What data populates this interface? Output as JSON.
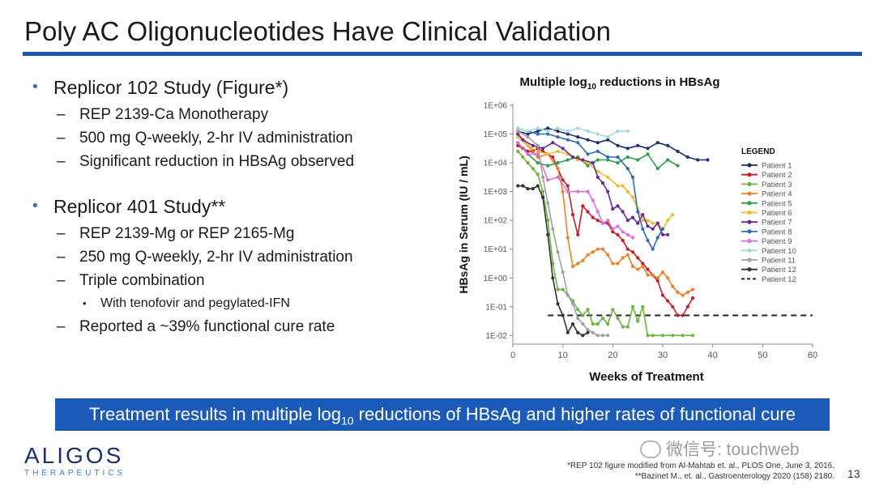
{
  "slide": {
    "title": "Poly AC Oligonucleotides Have Clinical Validation",
    "page_number": "13"
  },
  "bullets": {
    "study1": {
      "heading": "Replicor 102 Study (Figure*)",
      "items": [
        "REP 2139-Ca Monotherapy",
        "500 mg Q-weekly, 2-hr IV administration",
        "Significant reduction in HBsAg observed"
      ]
    },
    "study2": {
      "heading": "Replicor 401 Study**",
      "item1": "REP 2139-Mg or REP 2165-Mg",
      "item2": "250 mg Q-weekly, 2-hr IV administration",
      "item3": "Triple combination",
      "subitem": "With tenofovir and pegylated-IFN",
      "item4": "Reported a ~39% functional cure rate"
    }
  },
  "banner": {
    "pre": "Treatment results in multiple log",
    "sub": "10",
    "post": " reductions of HBsAg and higher rates of functional cure"
  },
  "footer": {
    "logo_main": "ALIGOS",
    "logo_sub": "THERAPEUTICS",
    "wechat": "微信号: touchweb",
    "ref1": "*REP 102 figure modified from Al-Mahtab et. al., PLOS One, June 3, 2016.",
    "ref2": "**Bazinet M., et. al., Gastroenterology 2020 (158) 2180."
  },
  "chart_data": {
    "type": "line",
    "title_pre": "Multiple log",
    "title_sub": "10",
    "title_post": " reductions in HBsAg",
    "xlabel": "Weeks of Treatment",
    "ylabel": "HBsAg in Serum (IU / mL)",
    "x_ticks": [
      0,
      10,
      20,
      30,
      40,
      50,
      60
    ],
    "y_ticks": [
      "1E+06",
      "1E+05",
      "1E+04",
      "1E+03",
      "1E+02",
      "1E+01",
      "1E+00",
      "1E-01",
      "1E-02"
    ],
    "xlim": [
      0,
      60
    ],
    "ylim_log10": [
      -2.3,
      6
    ],
    "legend_title": "LEGEND",
    "threshold": {
      "label": "Patient 12",
      "value_log10": -1.3,
      "color": "#222222"
    },
    "series": [
      {
        "name": "Patient 1",
        "color": "#1c2f6b",
        "points": [
          [
            1,
            5.1
          ],
          [
            3,
            5.0
          ],
          [
            5,
            5.1
          ],
          [
            7,
            5.2
          ],
          [
            9,
            5.1
          ],
          [
            11,
            5.0
          ],
          [
            13,
            4.9
          ],
          [
            15,
            4.8
          ],
          [
            17,
            4.7
          ],
          [
            19,
            4.8
          ],
          [
            21,
            4.6
          ],
          [
            23,
            4.5
          ],
          [
            25,
            4.6
          ],
          [
            27,
            4.5
          ],
          [
            29,
            4.7
          ],
          [
            31,
            4.6
          ],
          [
            33,
            4.4
          ],
          [
            35,
            4.2
          ],
          [
            37,
            4.1
          ],
          [
            39,
            4.1
          ]
        ]
      },
      {
        "name": "Patient 2",
        "color": "#c0202a",
        "points": [
          [
            1,
            4.6
          ],
          [
            2,
            4.5
          ],
          [
            3,
            4.4
          ],
          [
            4,
            4.4
          ],
          [
            5,
            4.5
          ],
          [
            6,
            4.4
          ],
          [
            7,
            4.3
          ],
          [
            8,
            4.2
          ],
          [
            9,
            3.8
          ],
          [
            10,
            3.4
          ],
          [
            11,
            3.2
          ],
          [
            12,
            2.2
          ],
          [
            13,
            1.5
          ],
          [
            14,
            2.5
          ],
          [
            15,
            2.3
          ],
          [
            16,
            2.1
          ],
          [
            17,
            2.0
          ],
          [
            18,
            1.9
          ],
          [
            19,
            1.9
          ],
          [
            20,
            1.6
          ],
          [
            21,
            1.5
          ],
          [
            22,
            1.3
          ],
          [
            23,
            1.0
          ],
          [
            24,
            0.9
          ],
          [
            25,
            0.7
          ],
          [
            26,
            0.5
          ],
          [
            27,
            0.3
          ],
          [
            28,
            0.1
          ],
          [
            29,
            -0.1
          ],
          [
            30,
            -0.6
          ],
          [
            31,
            -0.8
          ],
          [
            32,
            -1.0
          ],
          [
            33,
            -1.3
          ],
          [
            34,
            -1.3
          ],
          [
            35,
            -1.0
          ],
          [
            36,
            -0.7
          ]
        ]
      },
      {
        "name": "Patient 3",
        "color": "#6db33f",
        "points": [
          [
            1,
            4.4
          ],
          [
            2,
            4.2
          ],
          [
            3,
            4.0
          ],
          [
            4,
            3.8
          ],
          [
            5,
            3.6
          ],
          [
            6,
            3.0
          ],
          [
            7,
            2.0
          ],
          [
            8,
            0.5
          ],
          [
            9,
            -0.4
          ],
          [
            10,
            -0.4
          ],
          [
            11,
            -0.6
          ],
          [
            12,
            -0.8
          ],
          [
            13,
            -1.1
          ],
          [
            14,
            -1.3
          ],
          [
            15,
            -1.1
          ],
          [
            16,
            -1.6
          ],
          [
            17,
            -1.6
          ],
          [
            18,
            -1.4
          ],
          [
            19,
            -1.6
          ],
          [
            20,
            -1.1
          ],
          [
            21,
            -1.4
          ],
          [
            22,
            -1.7
          ],
          [
            23,
            -1.7
          ],
          [
            24,
            -1.0
          ],
          [
            25,
            -1.5
          ],
          [
            26,
            -1.0
          ],
          [
            27,
            -2.0
          ],
          [
            28,
            -2.0
          ],
          [
            30,
            -2.0
          ],
          [
            32,
            -2.0
          ],
          [
            34,
            -2.0
          ],
          [
            36,
            -2.0
          ]
        ]
      },
      {
        "name": "Patient 4",
        "color": "#e8832a",
        "points": [
          [
            1,
            5.0
          ],
          [
            3,
            4.6
          ],
          [
            5,
            4.2
          ],
          [
            7,
            4.3
          ],
          [
            9,
            3.8
          ],
          [
            10,
            3.0
          ],
          [
            11,
            1.4
          ],
          [
            12,
            0.4
          ],
          [
            13,
            0.5
          ],
          [
            14,
            0.6
          ],
          [
            15,
            0.8
          ],
          [
            16,
            0.9
          ],
          [
            17,
            1.0
          ],
          [
            18,
            1.0
          ],
          [
            19,
            0.8
          ],
          [
            20,
            0.5
          ],
          [
            21,
            0.5
          ],
          [
            22,
            0.7
          ],
          [
            23,
            0.8
          ],
          [
            24,
            0.4
          ],
          [
            25,
            0.3
          ],
          [
            26,
            0.4
          ],
          [
            27,
            0.1
          ],
          [
            28,
            0.1
          ],
          [
            29,
            0.0
          ],
          [
            30,
            0.2
          ],
          [
            31,
            0.0
          ],
          [
            32,
            -0.3
          ],
          [
            33,
            -0.5
          ],
          [
            34,
            -0.6
          ],
          [
            35,
            -0.5
          ],
          [
            36,
            -0.4
          ]
        ]
      },
      {
        "name": "Patient 5",
        "color": "#2e9e4a",
        "points": [
          [
            1,
            4.7
          ],
          [
            3,
            4.3
          ],
          [
            5,
            4.0
          ],
          [
            7,
            3.9
          ],
          [
            9,
            4.0
          ],
          [
            11,
            4.1
          ],
          [
            13,
            4.2
          ],
          [
            15,
            3.9
          ],
          [
            17,
            4.1
          ],
          [
            19,
            4.1
          ],
          [
            21,
            4.0
          ],
          [
            23,
            4.2
          ],
          [
            25,
            4.1
          ],
          [
            27,
            4.3
          ],
          [
            29,
            3.8
          ],
          [
            31,
            4.1
          ],
          [
            33,
            3.9
          ]
        ]
      },
      {
        "name": "Patient 6",
        "color": "#f2b733",
        "points": [
          [
            1,
            4.9
          ],
          [
            3,
            4.6
          ],
          [
            5,
            4.4
          ],
          [
            7,
            4.3
          ],
          [
            9,
            4.4
          ],
          [
            11,
            4.3
          ],
          [
            13,
            4.1
          ],
          [
            15,
            4.0
          ],
          [
            17,
            3.7
          ],
          [
            19,
            3.5
          ],
          [
            21,
            3.2
          ],
          [
            22,
            3.2
          ],
          [
            23,
            3.0
          ],
          [
            24,
            2.8
          ],
          [
            25,
            2.4
          ],
          [
            26,
            2.0
          ],
          [
            27,
            2.0
          ],
          [
            28,
            1.9
          ],
          [
            29,
            1.9
          ],
          [
            30,
            1.7
          ],
          [
            31,
            2.0
          ],
          [
            32,
            2.2
          ]
        ]
      },
      {
        "name": "Patient 7",
        "color": "#6a2a8c",
        "points": [
          [
            1,
            5.0
          ],
          [
            2,
            4.8
          ],
          [
            4,
            4.6
          ],
          [
            6,
            4.5
          ],
          [
            8,
            4.7
          ],
          [
            10,
            4.5
          ],
          [
            12,
            4.2
          ],
          [
            14,
            4.1
          ],
          [
            16,
            4.0
          ],
          [
            17,
            3.5
          ],
          [
            18,
            3.3
          ],
          [
            19,
            3.0
          ],
          [
            20,
            2.4
          ],
          [
            21,
            2.5
          ],
          [
            22,
            2.3
          ],
          [
            23,
            2.0
          ],
          [
            24,
            2.1
          ],
          [
            25,
            1.9
          ],
          [
            26,
            2.2
          ],
          [
            27,
            1.8
          ],
          [
            28,
            1.7
          ],
          [
            29,
            1.9
          ],
          [
            30,
            1.5
          ],
          [
            31,
            1.5
          ]
        ]
      },
      {
        "name": "Patient 8",
        "color": "#2f6db5",
        "points": [
          [
            1,
            5.2
          ],
          [
            3,
            5.1
          ],
          [
            5,
            5.0
          ],
          [
            7,
            5.0
          ],
          [
            9,
            4.9
          ],
          [
            11,
            4.8
          ],
          [
            13,
            4.7
          ],
          [
            15,
            4.3
          ],
          [
            17,
            4.4
          ],
          [
            19,
            4.2
          ],
          [
            21,
            4.2
          ],
          [
            23,
            3.8
          ],
          [
            24,
            3.5
          ],
          [
            25,
            2.3
          ],
          [
            26,
            1.7
          ],
          [
            27,
            1.3
          ],
          [
            28,
            1.0
          ],
          [
            29,
            1.4
          ],
          [
            30,
            1.7
          ]
        ]
      },
      {
        "name": "Patient 9",
        "color": "#d96fd8",
        "points": [
          [
            1,
            4.7
          ],
          [
            3,
            4.3
          ],
          [
            5,
            4.3
          ],
          [
            7,
            3.4
          ],
          [
            9,
            3.5
          ],
          [
            11,
            3.0
          ],
          [
            13,
            3.0
          ],
          [
            15,
            3.0
          ],
          [
            16,
            2.7
          ],
          [
            17,
            2.3
          ],
          [
            18,
            1.9
          ],
          [
            19,
            2.0
          ],
          [
            20,
            1.7
          ],
          [
            21,
            1.8
          ],
          [
            22,
            1.6
          ],
          [
            23,
            1.5
          ],
          [
            24,
            1.4
          ]
        ]
      },
      {
        "name": "Patient 10",
        "color": "#a6d8de",
        "points": [
          [
            1,
            5.2
          ],
          [
            3,
            5.1
          ],
          [
            5,
            5.2
          ],
          [
            7,
            5.1
          ],
          [
            9,
            5.2
          ],
          [
            11,
            5.1
          ],
          [
            13,
            5.2
          ],
          [
            15,
            5.1
          ],
          [
            17,
            5.0
          ],
          [
            19,
            4.9
          ],
          [
            21,
            5.1
          ],
          [
            23,
            5.1
          ]
        ]
      },
      {
        "name": "Patient 11",
        "color": "#a0a0a0",
        "points": [
          [
            1,
            5.1
          ],
          [
            3,
            4.9
          ],
          [
            5,
            4.6
          ],
          [
            6,
            3.5
          ],
          [
            7,
            2.6
          ],
          [
            8,
            1.7
          ],
          [
            9,
            0.9
          ],
          [
            10,
            0.2
          ],
          [
            11,
            -0.6
          ],
          [
            12,
            -0.9
          ],
          [
            13,
            -1.4
          ],
          [
            14,
            -1.6
          ],
          [
            15,
            -1.8
          ],
          [
            16,
            -1.9
          ],
          [
            17,
            -2.0
          ],
          [
            18,
            -2.0
          ],
          [
            19,
            -2.0
          ]
        ]
      },
      {
        "name": "Patient 12",
        "color": "#333333",
        "points": [
          [
            1,
            3.2
          ],
          [
            2,
            3.2
          ],
          [
            3,
            3.1
          ],
          [
            4,
            3.1
          ],
          [
            5,
            3.2
          ],
          [
            6,
            2.8
          ],
          [
            7,
            1.5
          ],
          [
            8,
            0.0
          ],
          [
            9,
            -0.9
          ],
          [
            10,
            -1.3
          ],
          [
            11,
            -1.9
          ],
          [
            12,
            -1.6
          ],
          [
            13,
            -1.9
          ],
          [
            14,
            -2.0
          ],
          [
            15,
            -1.9
          ]
        ]
      }
    ]
  }
}
